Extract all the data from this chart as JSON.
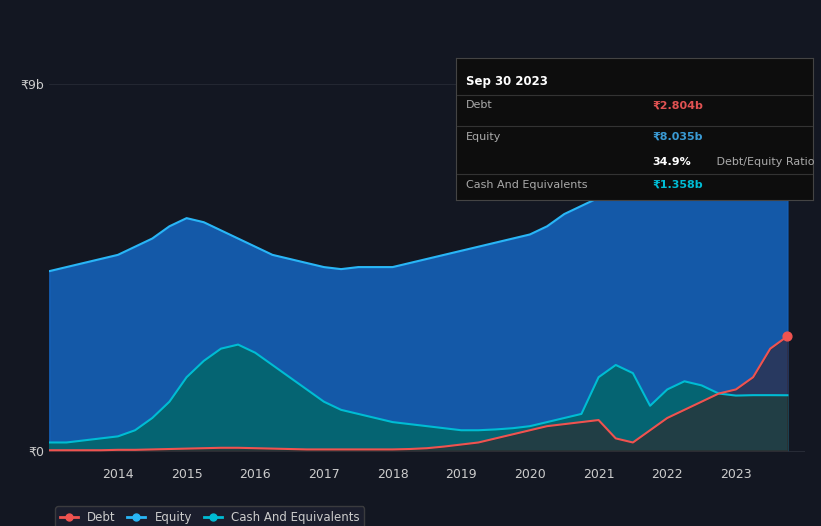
{
  "background_color": "#131722",
  "plot_bg_color": "#131722",
  "grid_color": "#2a2e39",
  "title_box": {
    "date": "Sep 30 2023",
    "debt_label": "Debt",
    "debt_value": "₹2.804b",
    "debt_color": "#e05252",
    "equity_label": "Equity",
    "equity_value": "₹8.035b",
    "equity_color": "#3a9bd5",
    "ratio_bold": "34.9%",
    "ratio_rest": " Debt/Equity Ratio",
    "cash_label": "Cash And Equivalents",
    "cash_value": "₹1.358b",
    "cash_color": "#00bcd4"
  },
  "ylabel_top": "₹9b",
  "ylabel_bottom": "₹0",
  "x_ticks": [
    "2014",
    "2015",
    "2016",
    "2017",
    "2018",
    "2019",
    "2020",
    "2021",
    "2022",
    "2023"
  ],
  "equity_color": "#29b6f6",
  "equity_fill": "#1565c0",
  "debt_color": "#ef5350",
  "debt_fill": "#3d1a1a",
  "cash_color": "#00bcd4",
  "cash_fill": "#00695c",
  "years": [
    2013.0,
    2013.25,
    2013.5,
    2013.75,
    2014.0,
    2014.25,
    2014.5,
    2014.75,
    2015.0,
    2015.25,
    2015.5,
    2015.75,
    2016.0,
    2016.25,
    2016.5,
    2016.75,
    2017.0,
    2017.25,
    2017.5,
    2017.75,
    2018.0,
    2018.25,
    2018.5,
    2018.75,
    2019.0,
    2019.25,
    2019.5,
    2019.75,
    2020.0,
    2020.25,
    2020.5,
    2020.75,
    2021.0,
    2021.25,
    2021.5,
    2021.75,
    2022.0,
    2022.25,
    2022.5,
    2022.75,
    2023.0,
    2023.25,
    2023.5,
    2023.75
  ],
  "equity": [
    4.4,
    4.5,
    4.6,
    4.7,
    4.8,
    5.0,
    5.2,
    5.5,
    5.7,
    5.6,
    5.4,
    5.2,
    5.0,
    4.8,
    4.7,
    4.6,
    4.5,
    4.45,
    4.5,
    4.5,
    4.5,
    4.6,
    4.7,
    4.8,
    4.9,
    5.0,
    5.1,
    5.2,
    5.3,
    5.5,
    5.8,
    6.0,
    6.2,
    6.5,
    6.8,
    7.1,
    7.3,
    7.5,
    7.8,
    8.0,
    8.0,
    8.05,
    8.1,
    8.035
  ],
  "debt": [
    0.01,
    0.01,
    0.01,
    0.01,
    0.02,
    0.02,
    0.03,
    0.04,
    0.05,
    0.06,
    0.07,
    0.07,
    0.06,
    0.05,
    0.04,
    0.03,
    0.03,
    0.03,
    0.03,
    0.03,
    0.03,
    0.04,
    0.06,
    0.1,
    0.15,
    0.2,
    0.3,
    0.4,
    0.5,
    0.6,
    0.65,
    0.7,
    0.75,
    0.3,
    0.2,
    0.5,
    0.8,
    1.0,
    1.2,
    1.4,
    1.5,
    1.8,
    2.5,
    2.804
  ],
  "cash": [
    0.2,
    0.2,
    0.25,
    0.3,
    0.35,
    0.5,
    0.8,
    1.2,
    1.8,
    2.2,
    2.5,
    2.6,
    2.4,
    2.1,
    1.8,
    1.5,
    1.2,
    1.0,
    0.9,
    0.8,
    0.7,
    0.65,
    0.6,
    0.55,
    0.5,
    0.5,
    0.52,
    0.55,
    0.6,
    0.7,
    0.8,
    0.9,
    1.8,
    2.1,
    1.9,
    1.1,
    1.5,
    1.7,
    1.6,
    1.4,
    1.35,
    1.36,
    1.36,
    1.358
  ],
  "legend": [
    {
      "label": "Debt",
      "color": "#ef5350"
    },
    {
      "label": "Equity",
      "color": "#29b6f6"
    },
    {
      "label": "Cash And Equivalents",
      "color": "#00bcd4"
    }
  ]
}
